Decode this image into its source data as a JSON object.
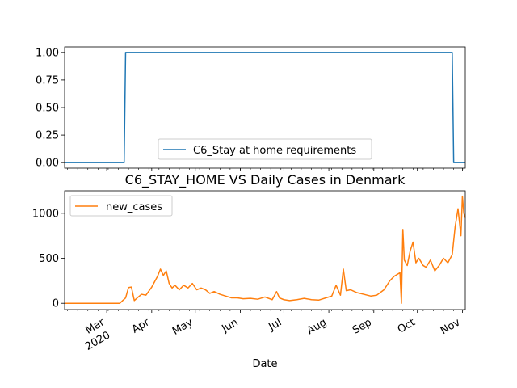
{
  "chart_data": [
    {
      "type": "line",
      "title": "",
      "xlabel": "",
      "ylabel": "",
      "ylim": [
        -0.05,
        1.05
      ],
      "yticks": [
        "0.00",
        "0.25",
        "0.50",
        "0.75",
        "1.00"
      ],
      "ytick_values": [
        0,
        0.25,
        0.5,
        0.75,
        1.0
      ],
      "legend_position": "lower center",
      "series": [
        {
          "name": "C6_Stay at home requirements",
          "color": "#1f77b4",
          "x": [
            "2020-02-01",
            "2020-03-13",
            "2020-03-14",
            "2020-10-25",
            "2020-10-26",
            "2020-11-03"
          ],
          "values": [
            0,
            0,
            1,
            1,
            0,
            0
          ]
        }
      ]
    },
    {
      "type": "line",
      "title": "C6_STAY_HOME VS Daily Cases in Denmark",
      "xlabel": "Date",
      "ylabel": "",
      "ylim": [
        -70,
        1250
      ],
      "yticks": [
        "0",
        "500",
        "1000"
      ],
      "ytick_values": [
        0,
        500,
        1000
      ],
      "legend_position": "upper left",
      "xticks": [
        {
          "label": "Mar",
          "sub": "2020",
          "date": "2020-03-01"
        },
        {
          "label": "Apr",
          "sub": "",
          "date": "2020-04-01"
        },
        {
          "label": "May",
          "sub": "",
          "date": "2020-05-01"
        },
        {
          "label": "Jun",
          "sub": "",
          "date": "2020-06-01"
        },
        {
          "label": "Jul",
          "sub": "",
          "date": "2020-07-01"
        },
        {
          "label": "Aug",
          "sub": "",
          "date": "2020-08-01"
        },
        {
          "label": "Sep",
          "sub": "",
          "date": "2020-09-01"
        },
        {
          "label": "Oct",
          "sub": "",
          "date": "2020-10-01"
        },
        {
          "label": "Nov",
          "sub": "",
          "date": "2020-11-01"
        }
      ],
      "series": [
        {
          "name": "new_cases",
          "color": "#ff7f0e",
          "x": [
            "2020-02-01",
            "2020-02-20",
            "2020-03-05",
            "2020-03-10",
            "2020-03-12",
            "2020-03-14",
            "2020-03-16",
            "2020-03-18",
            "2020-03-20",
            "2020-03-22",
            "2020-03-25",
            "2020-03-28",
            "2020-04-01",
            "2020-04-03",
            "2020-04-05",
            "2020-04-07",
            "2020-04-09",
            "2020-04-11",
            "2020-04-13",
            "2020-04-15",
            "2020-04-17",
            "2020-04-20",
            "2020-04-23",
            "2020-04-26",
            "2020-04-29",
            "2020-05-02",
            "2020-05-05",
            "2020-05-08",
            "2020-05-11",
            "2020-05-14",
            "2020-05-18",
            "2020-05-22",
            "2020-05-26",
            "2020-05-30",
            "2020-06-03",
            "2020-06-08",
            "2020-06-13",
            "2020-06-18",
            "2020-06-23",
            "2020-06-26",
            "2020-06-28",
            "2020-07-01",
            "2020-07-05",
            "2020-07-10",
            "2020-07-15",
            "2020-07-20",
            "2020-07-25",
            "2020-07-30",
            "2020-08-03",
            "2020-08-06",
            "2020-08-09",
            "2020-08-11",
            "2020-08-13",
            "2020-08-16",
            "2020-08-20",
            "2020-08-25",
            "2020-08-30",
            "2020-09-03",
            "2020-09-08",
            "2020-09-12",
            "2020-09-15",
            "2020-09-18",
            "2020-09-19",
            "2020-09-20",
            "2020-09-21",
            "2020-09-22",
            "2020-09-24",
            "2020-09-26",
            "2020-09-28",
            "2020-09-30",
            "2020-10-02",
            "2020-10-05",
            "2020-10-07",
            "2020-10-10",
            "2020-10-13",
            "2020-10-16",
            "2020-10-19",
            "2020-10-22",
            "2020-10-25",
            "2020-10-27",
            "2020-10-29",
            "2020-10-31",
            "2020-11-01",
            "2020-11-02",
            "2020-11-03"
          ],
          "values": [
            0,
            0,
            0,
            0,
            30,
            60,
            175,
            180,
            30,
            60,
            100,
            90,
            180,
            240,
            300,
            380,
            310,
            360,
            220,
            170,
            200,
            150,
            200,
            170,
            220,
            150,
            170,
            150,
            110,
            130,
            100,
            80,
            60,
            60,
            50,
            55,
            45,
            70,
            40,
            130,
            60,
            40,
            30,
            40,
            55,
            40,
            35,
            60,
            80,
            200,
            90,
            380,
            140,
            150,
            120,
            100,
            80,
            90,
            150,
            250,
            300,
            330,
            340,
            0,
            820,
            480,
            420,
            580,
            680,
            450,
            500,
            420,
            400,
            480,
            360,
            420,
            500,
            450,
            540,
            850,
            1050,
            750,
            1190,
            1000,
            950
          ]
        }
      ]
    }
  ]
}
